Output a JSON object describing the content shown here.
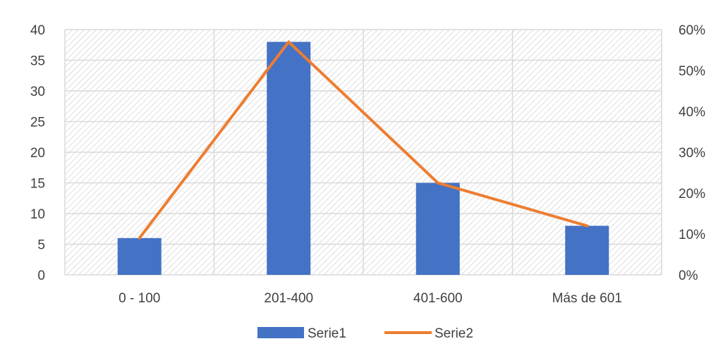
{
  "chart_data": {
    "type": "bar",
    "categories": [
      "0 - 100",
      "201-400",
      "401-600",
      "Más de 601"
    ],
    "series": [
      {
        "name": "Serie1",
        "type": "bar",
        "axis": "left",
        "values": [
          6,
          38,
          15,
          8
        ]
      },
      {
        "name": "Serie2",
        "type": "line",
        "axis": "right",
        "values": [
          0.09,
          0.57,
          0.225,
          0.12
        ]
      }
    ],
    "y_left": {
      "min": 0,
      "max": 40,
      "ticks": [
        "0",
        "5",
        "10",
        "15",
        "20",
        "25",
        "30",
        "35",
        "40"
      ]
    },
    "y_right": {
      "min": 0,
      "max": 0.6,
      "ticks": [
        "0%",
        "10%",
        "20%",
        "30%",
        "40%",
        "50%",
        "60%"
      ]
    },
    "grid": true,
    "legend_position": "bottom",
    "colors": {
      "bar": "#4472C4",
      "line": "#ED7D31",
      "grid": "#D9D9D9",
      "hatch": "#D0D0D0",
      "text": "#404040"
    }
  }
}
